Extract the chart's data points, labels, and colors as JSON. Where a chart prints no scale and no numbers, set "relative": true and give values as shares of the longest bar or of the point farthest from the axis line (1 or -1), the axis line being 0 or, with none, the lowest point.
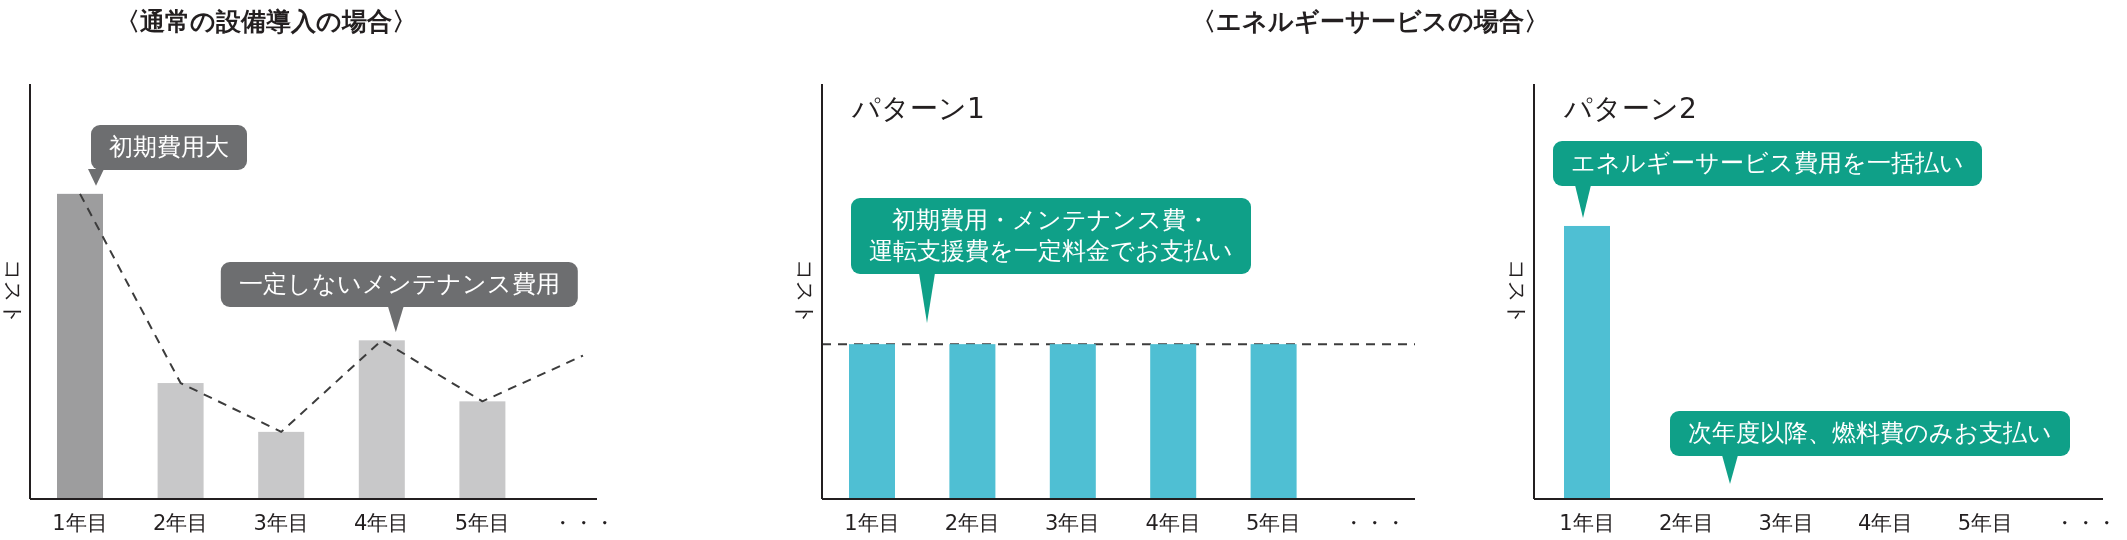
{
  "chart_data": [
    {
      "type": "bar",
      "title": "〈通常の設備導入の場合〉",
      "ylabel": "コスト",
      "relative": true,
      "categories": [
        "1年目",
        "2年目",
        "3年目",
        "4年目",
        "5年目",
        "・・・"
      ],
      "series": [
        {
          "type": "bar",
          "colors": [
            "#9d9d9e",
            "#c8c8c9",
            "#c8c8c9",
            "#c8c8c9",
            "#c8c8c9",
            null
          ],
          "values": [
            1,
            0.38,
            0.22,
            0.52,
            0.32,
            null
          ]
        },
        {
          "type": "line",
          "color": "#3c3c3c",
          "line_style": "dashed",
          "values": [
            1,
            0.38,
            0.22,
            0.52,
            0.32,
            0.47
          ]
        }
      ],
      "annotations": [
        {
          "text": "初期費用大",
          "x": "1年目",
          "y": 1
        },
        {
          "text": "一定しないメンテナンス費用",
          "x": "4年目",
          "y": 0.52
        }
      ]
    },
    {
      "type": "bar",
      "title": "〈エネルギーサービスの場合〉",
      "subtitle": "パターン1",
      "ylabel": "コスト",
      "relative": true,
      "categories": [
        "1年目",
        "2年目",
        "3年目",
        "4年目",
        "5年目",
        "・・・"
      ],
      "series": [
        {
          "type": "bar",
          "color": "#4fbfd3",
          "values": [
            1,
            1,
            1,
            1,
            1,
            null
          ]
        }
      ],
      "ref_lines": [
        {
          "axis": "y",
          "value": 1,
          "color": "#3c3c3c",
          "line_style": "dashed"
        }
      ],
      "annotations": [
        "初期費用・メンテナンス費・運転支援費を一定料金でお支払い"
      ]
    },
    {
      "type": "bar",
      "subtitle": "パターン2",
      "ylabel": "コスト",
      "relative": true,
      "categories": [
        "1年目",
        "2年目",
        "3年目",
        "4年目",
        "5年目",
        "・・・"
      ],
      "series": [
        {
          "type": "bar",
          "color": "#4fbfd3",
          "values": [
            1,
            null,
            null,
            null,
            null,
            null
          ]
        }
      ],
      "annotations": [
        {
          "text": "エネルギーサービス費用を一括払い",
          "x": "1年目",
          "y": 1
        },
        "次年度以降、燃料費のみお支払い"
      ]
    }
  ]
}
